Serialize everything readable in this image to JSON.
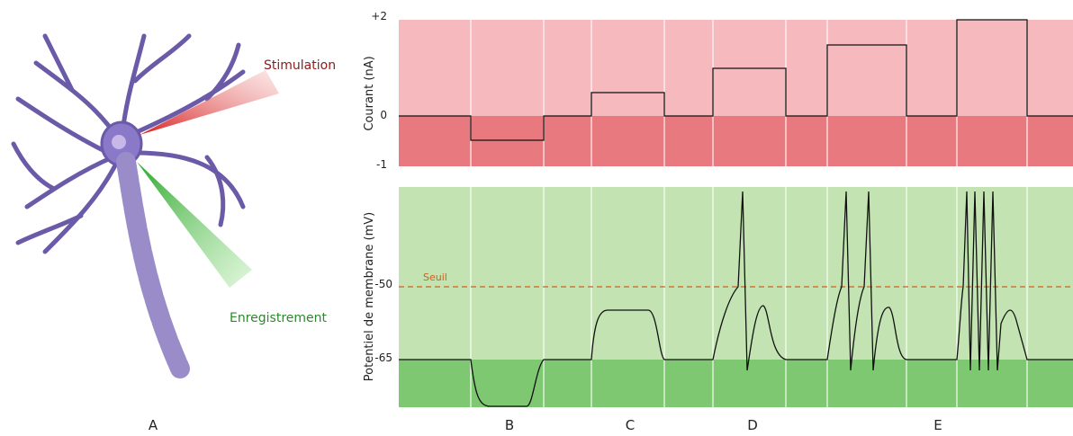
{
  "panel_labels": [
    "A",
    "B",
    "C",
    "D",
    "E"
  ],
  "neuron": {
    "stimulation": "Stimulation",
    "recording": "Enregistrement"
  },
  "current_plot": {
    "axis_label": "Courant (nA)",
    "ticks": [
      "+2",
      "0",
      "-1"
    ]
  },
  "voltage_plot": {
    "axis_label": "Potentiel de membrane (mV)",
    "ticks": [
      "-50",
      "-65"
    ],
    "threshold_label": "Seuil"
  }
}
